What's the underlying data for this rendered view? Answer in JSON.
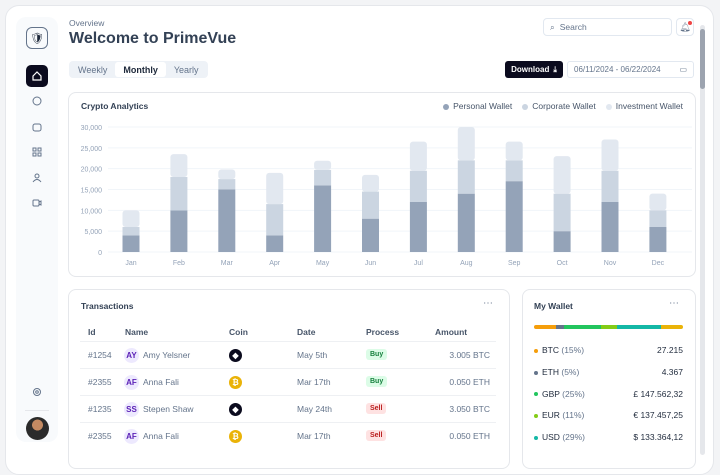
{
  "header": {
    "subtitle": "Overview",
    "title": "Welcome to PrimeVue",
    "search_placeholder": "Search",
    "download_label": "Download",
    "date_range": "06/11/2024 - 06/22/2024"
  },
  "tabs": [
    {
      "label": "Weekly"
    },
    {
      "label": "Monthly",
      "active": true
    },
    {
      "label": "Yearly"
    }
  ],
  "sidebar": {
    "items": [
      "home-icon",
      "chat-icon",
      "inbox-icon",
      "apps-icon",
      "user-icon",
      "video-icon"
    ],
    "bottom": [
      "gear-icon"
    ]
  },
  "chart_data": {
    "type": "bar",
    "stacked": true,
    "title": "Crypto Analytics",
    "categories": [
      "Jan",
      "Feb",
      "Mar",
      "Apr",
      "May",
      "Jun",
      "Jul",
      "Aug",
      "Sep",
      "Oct",
      "Nov",
      "Dec"
    ],
    "series": [
      {
        "name": "Personal Wallet",
        "color": "#94a3b8",
        "values": [
          4000,
          10000,
          15000,
          4000,
          16000,
          8000,
          12000,
          14000,
          17000,
          5000,
          12000,
          6000
        ]
      },
      {
        "name": "Corporate Wallet",
        "color": "#cbd5e1",
        "values": [
          2000,
          8000,
          2500,
          7500,
          3700,
          6500,
          7500,
          8000,
          5000,
          9000,
          7500,
          4000
        ]
      },
      {
        "name": "Investment Wallet",
        "color": "#e2e8f0",
        "values": [
          4000,
          5500,
          2300,
          7500,
          2200,
          4000,
          7000,
          8000,
          4500,
          9000,
          7500,
          4000
        ]
      }
    ],
    "yticks": [
      "0",
      "5,000",
      "10,000",
      "15,000",
      "20,000",
      "25,000",
      "30,000"
    ],
    "ylim": [
      0,
      30000
    ],
    "grid": true,
    "legend": "top-right"
  },
  "transactions": {
    "title": "Transactions",
    "columns": [
      "Id",
      "Name",
      "Coin",
      "Date",
      "Process",
      "Amount"
    ],
    "rows": [
      {
        "id": "#1254",
        "initials": "AY",
        "name": "Amy Yelsner",
        "coin": "ethereum",
        "date": "May 5th",
        "process": "Buy",
        "amount": "3.005 BTC"
      },
      {
        "id": "#2355",
        "initials": "AF",
        "name": "Anna Fali",
        "coin": "bitcoin",
        "date": "Mar 17th",
        "process": "Buy",
        "amount": "0.050 ETH"
      },
      {
        "id": "#1235",
        "initials": "SS",
        "name": "Stepen Shaw",
        "coin": "ethereum",
        "date": "May 24th",
        "process": "Sell",
        "amount": "3.050 BTC"
      },
      {
        "id": "#2355",
        "initials": "AF",
        "name": "Anna Fali",
        "coin": "bitcoin",
        "date": "Mar 17th",
        "process": "Sell",
        "amount": "0.050 ETH"
      }
    ]
  },
  "wallet": {
    "title": "My Wallet",
    "items": [
      {
        "label": "BTC",
        "pct": "(15%)",
        "value": "27.215",
        "color": "#f59e0b"
      },
      {
        "label": "ETH",
        "pct": "(5%)",
        "value": "4.367",
        "color": "#64748b"
      },
      {
        "label": "GBP",
        "pct": "(25%)",
        "value": "£ 147.562,32",
        "color": "#22c55e"
      },
      {
        "label": "EUR",
        "pct": "(11%)",
        "value": "€ 137.457,25",
        "color": "#84cc16"
      },
      {
        "label": "USD",
        "pct": "(29%)",
        "value": "$ 133.364,12",
        "color": "#14b8a6"
      }
    ],
    "bar": [
      {
        "pct": 15,
        "color": "#f59e0b"
      },
      {
        "pct": 5,
        "color": "#64748b"
      },
      {
        "pct": 25,
        "color": "#22c55e"
      },
      {
        "pct": 11,
        "color": "#84cc16"
      },
      {
        "pct": 29,
        "color": "#14b8a6"
      },
      {
        "pct": 15,
        "color": "#eab308"
      }
    ]
  }
}
